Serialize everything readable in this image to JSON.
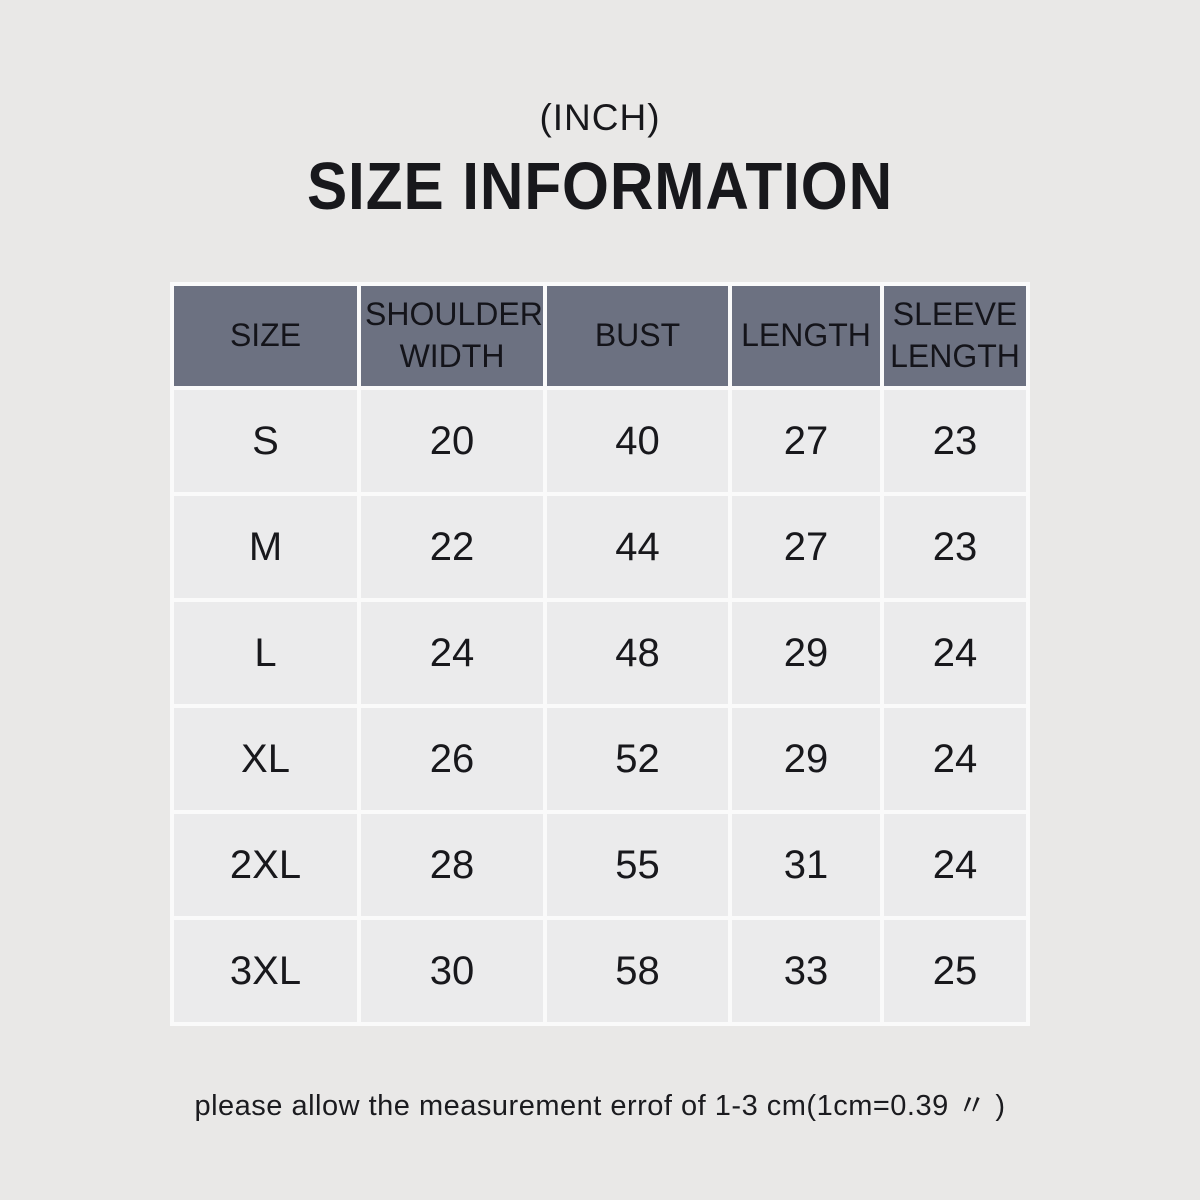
{
  "page": {
    "unit_label": "(INCH)",
    "title": "SIZE INFORMATION",
    "note": "please allow the measurement errof of 1-3 cm(1cm=0.39 〃 )"
  },
  "colors": {
    "page_background": "#e9e8e7",
    "header_background": "#6c7181",
    "cell_background": "#ebebec",
    "grid_line": "#fafafa",
    "text": "#18181c"
  },
  "chart_data": {
    "type": "table",
    "title": "SIZE INFORMATION",
    "subtitle": "(INCH)",
    "columns": [
      "SIZE",
      "SHOULDER WIDTH",
      "BUST",
      "LENGTH",
      "SLEEVE LENGTH"
    ],
    "rows": [
      [
        "S",
        20,
        40,
        27,
        23
      ],
      [
        "M",
        22,
        44,
        27,
        23
      ],
      [
        "L",
        24,
        48,
        29,
        24
      ],
      [
        "XL",
        26,
        52,
        29,
        24
      ],
      [
        "2XL",
        28,
        55,
        31,
        24
      ],
      [
        "3XL",
        30,
        58,
        33,
        25
      ]
    ],
    "note": "please allow the measurement errof of 1-3 cm(1cm=0.39 〃 )"
  }
}
